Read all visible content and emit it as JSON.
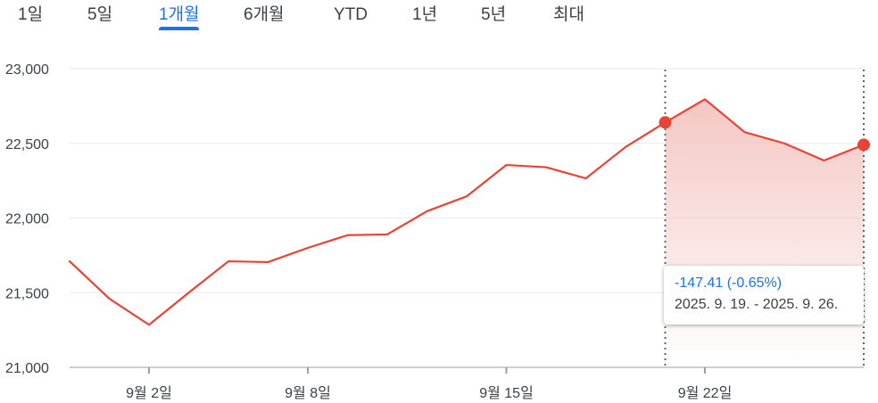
{
  "range_tabs": {
    "items": [
      {
        "label": "1일"
      },
      {
        "label": "5일"
      },
      {
        "label": "1개월"
      },
      {
        "label": "6개월"
      },
      {
        "label": "YTD"
      },
      {
        "label": "1년"
      },
      {
        "label": "5년"
      },
      {
        "label": "최대"
      }
    ],
    "active_index": 2
  },
  "tooltip": {
    "change": "-147.41 (-0.65%)",
    "date_range": "2025. 9. 19. - 2025. 9. 26."
  },
  "colors": {
    "line": "#ea4335",
    "fill": "#f4c7c3",
    "accent": "#1a73e8",
    "grid": "#e8eaed",
    "axis": "#3c4043"
  },
  "chart_data": {
    "type": "area",
    "y_ticks": [
      "23,000",
      "22,500",
      "22,000",
      "21,500",
      "21,000"
    ],
    "y_tick_values": [
      23000,
      22500,
      22000,
      21500,
      21000
    ],
    "ylim": [
      21000,
      23000
    ],
    "x_ticks": [
      "9월 2일",
      "9월 8일",
      "9월 15일",
      "9월 22일"
    ],
    "x_tick_index": [
      2,
      6,
      11,
      16
    ],
    "grid": true,
    "series": [
      {
        "values": [
          21710,
          21460,
          21285,
          21500,
          21710,
          21705,
          21800,
          21885,
          21890,
          22045,
          22145,
          22355,
          22340,
          22265,
          22475,
          22640,
          22795,
          22575,
          22500,
          22385,
          22490
        ]
      }
    ],
    "selection": {
      "start_index": 15,
      "end_index": 20
    }
  }
}
